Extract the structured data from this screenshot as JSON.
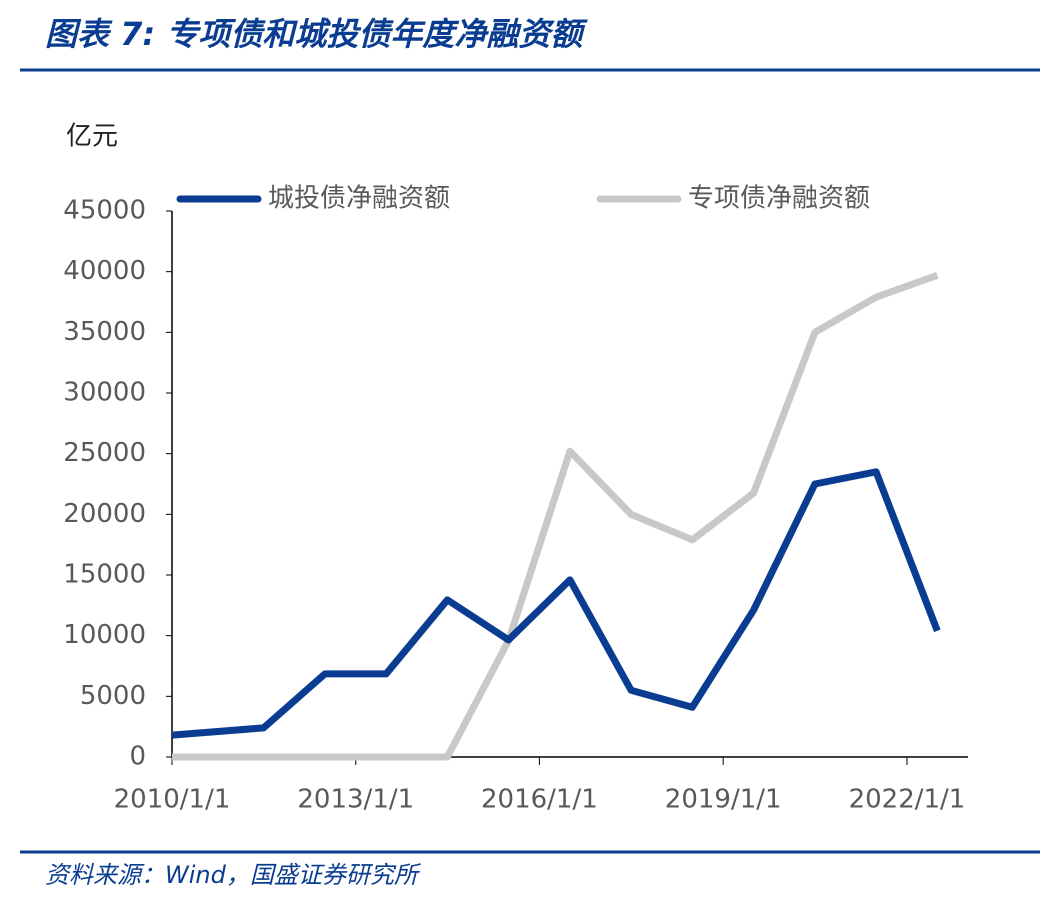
{
  "chart_data": {
    "type": "line",
    "title": "图表 7:  专项债和城投债年度净融资额",
    "y_label": "亿元",
    "source": "资料来源：Wind，国盛证券研究所",
    "x": [
      "2010/1/1",
      "2011/7/1",
      "2012/7/1",
      "2013/7/1",
      "2014/7/1",
      "2015/7/1",
      "2016/7/1",
      "2017/7/1",
      "2018/7/1",
      "2019/7/1",
      "2020/7/1",
      "2021/7/1",
      "2022/7/1"
    ],
    "series": [
      {
        "name": "城投债净融资额",
        "color": "#0a3d91",
        "values": [
          1800,
          2400,
          6850,
          6850,
          12950,
          9650,
          14600,
          5500,
          4100,
          12100,
          22500,
          23500,
          10400
        ]
      },
      {
        "name": "专项债净融资额",
        "color": "#c8c8c8",
        "values": [
          0,
          0,
          0,
          0,
          0,
          9600,
          25200,
          20000,
          17900,
          21750,
          35000,
          37900,
          39700
        ]
      }
    ],
    "xlim": [
      "2010/1/1",
      "2022/12/31"
    ],
    "xticks": [
      "2010/1/1",
      "2013/1/1",
      "2016/1/1",
      "2019/1/1",
      "2022/1/1"
    ],
    "ylim": [
      0,
      45000
    ],
    "yticks": [
      0,
      5000,
      10000,
      15000,
      20000,
      25000,
      30000,
      35000,
      40000,
      45000
    ],
    "grid": false,
    "legend": "top"
  }
}
